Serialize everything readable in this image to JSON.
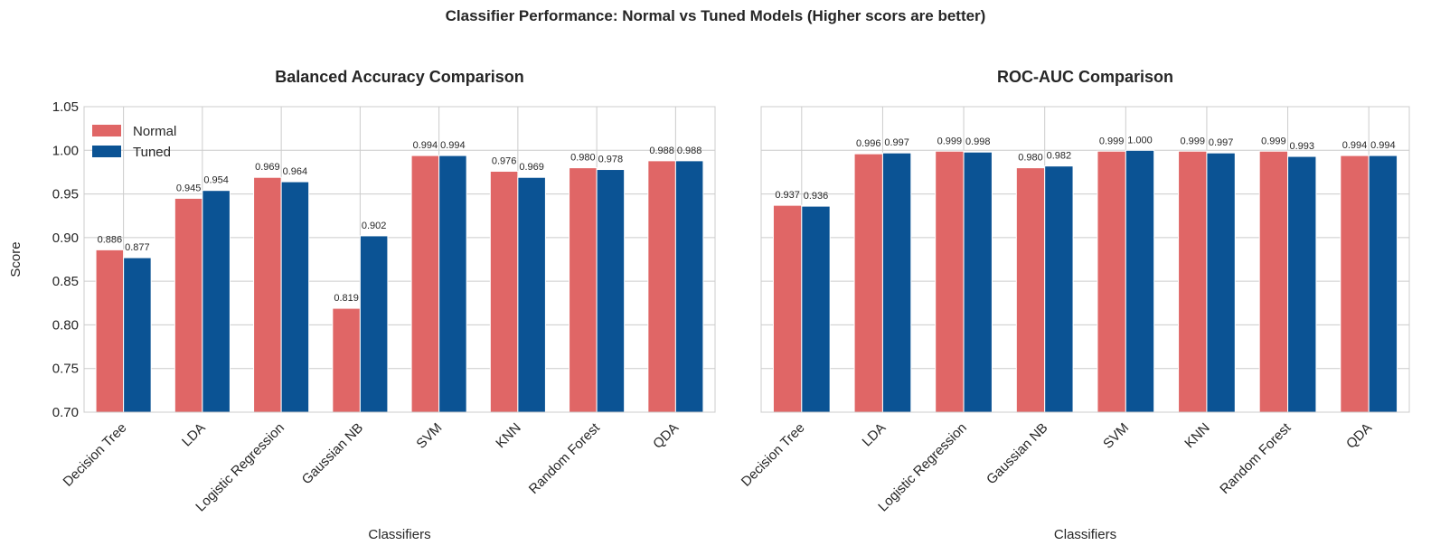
{
  "suptitle": "Classifier Performance: Normal vs Tuned Models (Higher scors are better)",
  "colors": {
    "normal": "#e06666",
    "tuned": "#0b5394",
    "grid": "#cccccc",
    "text": "#262626"
  },
  "chart_data": [
    {
      "type": "bar",
      "title": "Balanced Accuracy Comparison",
      "xlabel": "Classifiers",
      "ylabel": "Score",
      "ylim": [
        0.7,
        1.05
      ],
      "yticks": [
        "0.70",
        "0.75",
        "0.80",
        "0.85",
        "0.90",
        "0.95",
        "1.00",
        "1.05"
      ],
      "grid": true,
      "legend": "top-left",
      "categories": [
        "Decision Tree",
        "LDA",
        "Logistic Regression",
        "Gaussian NB",
        "SVM",
        "KNN",
        "Random Forest",
        "QDA"
      ],
      "series": [
        {
          "name": "Normal",
          "values": [
            0.886,
            0.945,
            0.969,
            0.819,
            0.994,
            0.976,
            0.98,
            0.988
          ],
          "labels": [
            "0.886",
            "0.945",
            "0.969",
            "0.819",
            "0.994",
            "0.976",
            "0.980",
            "0.988"
          ]
        },
        {
          "name": "Tuned",
          "values": [
            0.877,
            0.954,
            0.964,
            0.902,
            0.994,
            0.969,
            0.978,
            0.988
          ],
          "labels": [
            "0.877",
            "0.954",
            "0.964",
            "0.902",
            "0.994",
            "0.969",
            "0.978",
            "0.988"
          ]
        }
      ]
    },
    {
      "type": "bar",
      "title": "ROC-AUC Comparison",
      "xlabel": "Classifiers",
      "ylabel": "",
      "ylim": [
        0.7,
        1.05
      ],
      "grid": true,
      "categories": [
        "Decision Tree",
        "LDA",
        "Logistic Regression",
        "Gaussian NB",
        "SVM",
        "KNN",
        "Random Forest",
        "QDA"
      ],
      "series": [
        {
          "values": [
            0.937,
            0.996,
            0.999,
            0.98,
            0.999,
            0.999,
            0.999,
            0.994
          ],
          "labels": [
            "0.937",
            "0.996",
            "0.999",
            "0.980",
            "0.999",
            "0.999",
            "0.999",
            "0.994"
          ]
        },
        {
          "values": [
            0.936,
            0.997,
            0.998,
            0.982,
            1.0,
            0.997,
            0.993,
            0.994
          ],
          "labels": [
            "0.936",
            "0.997",
            "0.998",
            "0.982",
            "1.000",
            "0.997",
            "0.993",
            "0.994"
          ]
        }
      ]
    }
  ]
}
